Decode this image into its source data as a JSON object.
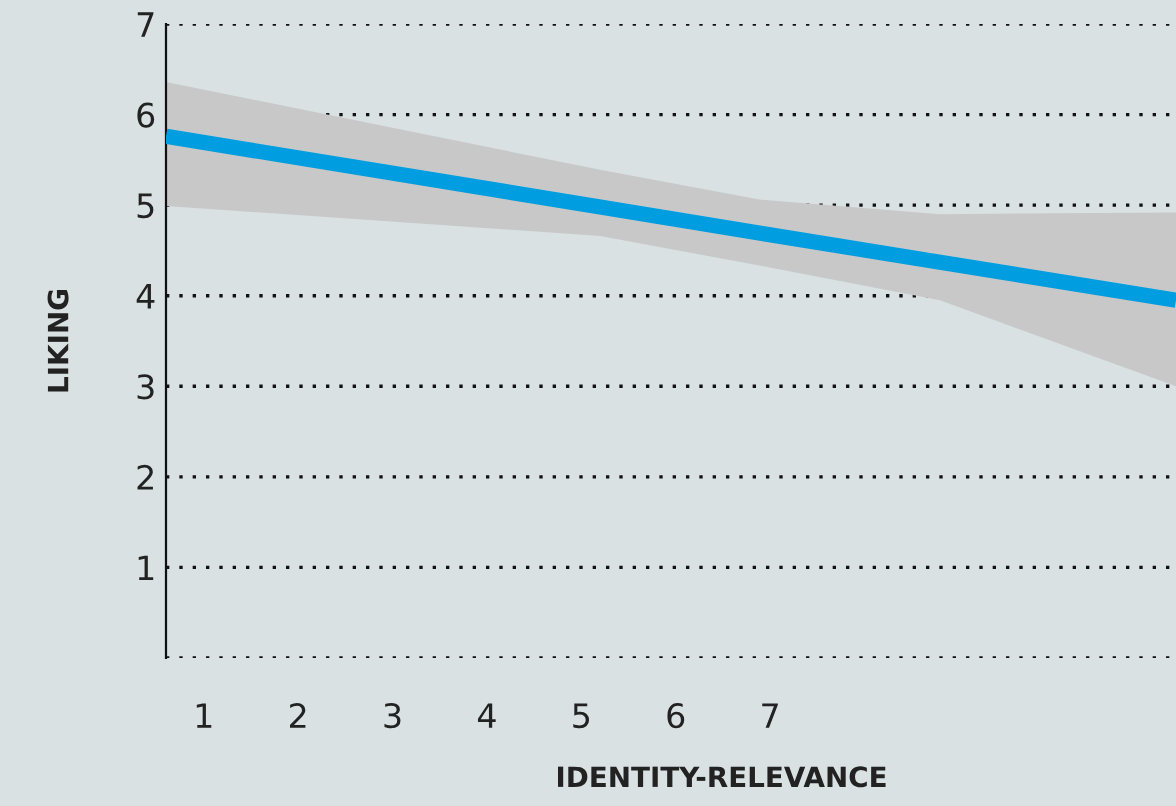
{
  "chart_data": {
    "type": "line",
    "xlabel": "IDENTITY-RELEVANCE",
    "ylabel": "LIKING",
    "x": [
      0.6,
      5.2,
      6.9,
      8.8,
      11.3
    ],
    "series": [
      {
        "color": "#009ee0",
        "values": [
          5.76,
          4.98,
          4.69,
          4.37,
          3.95
        ],
        "lower": [
          4.99,
          4.66,
          4.33,
          3.95,
          3.0
        ],
        "upper": [
          6.36,
          5.39,
          5.06,
          4.9,
          4.92
        ]
      }
    ],
    "xlim": [
      0.6,
      11.3
    ],
    "xticks": [
      1,
      2,
      3,
      4,
      5,
      6,
      7
    ],
    "ylim": [
      0,
      7
    ],
    "yticks": [
      {
        "value": 0,
        "label": null
      },
      1,
      2,
      3,
      4,
      5,
      6,
      7
    ],
    "grid": "y",
    "line_style": "solid",
    "marker": "none",
    "legend": false
  }
}
